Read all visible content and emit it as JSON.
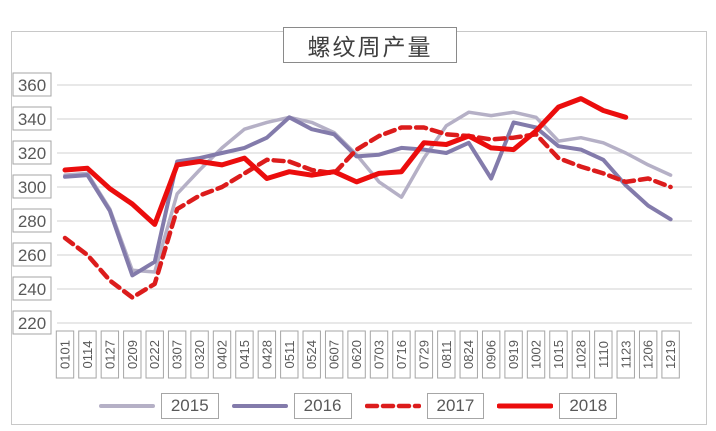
{
  "title": "螺纹周产量",
  "colors": {
    "grid": "#d9d9d9",
    "tick_text": "#595959",
    "tick_box_border": "#a6a6a6",
    "series_2015": "#b5b0c6",
    "series_2016": "#837bab",
    "series_2017": "#dc1c1c",
    "series_2018": "#eb0d0d"
  },
  "chart_data": {
    "type": "line",
    "title": "螺纹周产量",
    "xlabel": "",
    "ylabel": "",
    "ylim": [
      220,
      360
    ],
    "y_ticks": [
      360,
      340,
      320,
      300,
      280,
      260,
      240,
      220
    ],
    "grid": "horizontal",
    "legend_position": "bottom",
    "categories": [
      "0101",
      "0114",
      "0127",
      "0209",
      "0222",
      "0307",
      "0320",
      "0402",
      "0415",
      "0428",
      "0511",
      "0524",
      "0607",
      "0620",
      "0703",
      "0716",
      "0729",
      "0811",
      "0824",
      "0906",
      "0919",
      "1002",
      "1015",
      "1028",
      "1110",
      "1123",
      "1206",
      "1219"
    ],
    "series": [
      {
        "name": "2015",
        "style": "solid",
        "width": 3.5,
        "color": "#b5b0c6",
        "values": [
          307,
          308,
          287,
          251,
          250,
          296,
          310,
          323,
          334,
          338,
          341,
          338,
          332,
          319,
          303,
          294,
          317,
          336,
          344,
          342,
          344,
          341,
          327,
          329,
          326,
          320,
          313,
          307
        ]
      },
      {
        "name": "2016",
        "style": "solid",
        "width": 4,
        "color": "#837bab",
        "values": [
          306,
          307,
          286,
          248,
          256,
          315,
          317,
          320,
          323,
          329,
          341,
          334,
          331,
          318,
          319,
          323,
          322,
          320,
          326,
          305,
          338,
          335,
          324,
          322,
          316,
          301,
          289,
          281
        ]
      },
      {
        "name": "2017",
        "style": "dashed",
        "width": 4.5,
        "color": "#dc1c1c",
        "values": [
          270,
          260,
          245,
          235,
          243,
          287,
          295,
          300,
          308,
          316,
          315,
          310,
          308,
          322,
          330,
          335,
          335,
          331,
          330,
          328,
          329,
          331,
          317,
          312,
          308,
          303,
          305,
          300
        ]
      },
      {
        "name": "2018",
        "style": "solid",
        "width": 5,
        "color": "#eb0d0d",
        "values": [
          310,
          311,
          299,
          290,
          278,
          313,
          315,
          313,
          317,
          305,
          309,
          307,
          309,
          303,
          308,
          309,
          326,
          325,
          330,
          323,
          322,
          333,
          347,
          352,
          345,
          341,
          null,
          null
        ]
      }
    ]
  },
  "legend": {
    "items": [
      {
        "label": "2015"
      },
      {
        "label": "2016"
      },
      {
        "label": "2017"
      },
      {
        "label": "2018"
      }
    ]
  }
}
